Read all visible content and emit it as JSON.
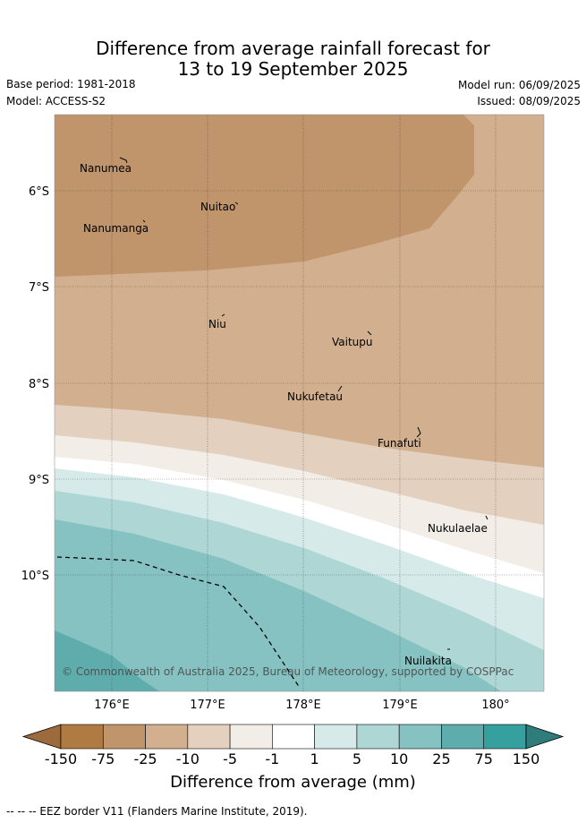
{
  "title_line1": "Difference from average rainfall forecast for",
  "title_line2": "13 to 19 September 2025",
  "base_period": "Base period: 1981-2018",
  "model": "Model: ACCESS-S2",
  "model_run": "Model run: 06/09/2025",
  "issued": "Issued: 08/09/2025",
  "copyright": "© Commonwealth of Australia 2025, Bureau of Meteorology, supported by COSPPac",
  "lat_labels": [
    "6°S",
    "7°S",
    "8°S",
    "9°S",
    "10°S"
  ],
  "lon_labels": [
    "176°E",
    "177°E",
    "178°E",
    "179°E",
    "180°"
  ],
  "places": [
    "Nanumea",
    "Nuitao",
    "Nanumanga",
    "Niu",
    "Vaitupu",
    "Nukufetau",
    "Funafuti",
    "Nukulaelae",
    "Nuilakita"
  ],
  "colorbar": {
    "title": "Difference from average (mm)",
    "ticks": [
      "-150",
      "-75",
      "-25",
      "-10",
      "-5",
      "-1",
      "1",
      "5",
      "10",
      "25",
      "75",
      "150"
    ],
    "colors": [
      "#9c6a3c",
      "#b07a43",
      "#c0956b",
      "#d2b08f",
      "#e4d0bf",
      "#f2ede7",
      "#ffffff",
      "#d6eaea",
      "#aed6d5",
      "#86c2c1",
      "#5eadac",
      "#36a09e",
      "#2e7c7b"
    ]
  },
  "footer": "-- -- -- EEZ border V11 (Flanders Marine Institute, 2019)."
}
